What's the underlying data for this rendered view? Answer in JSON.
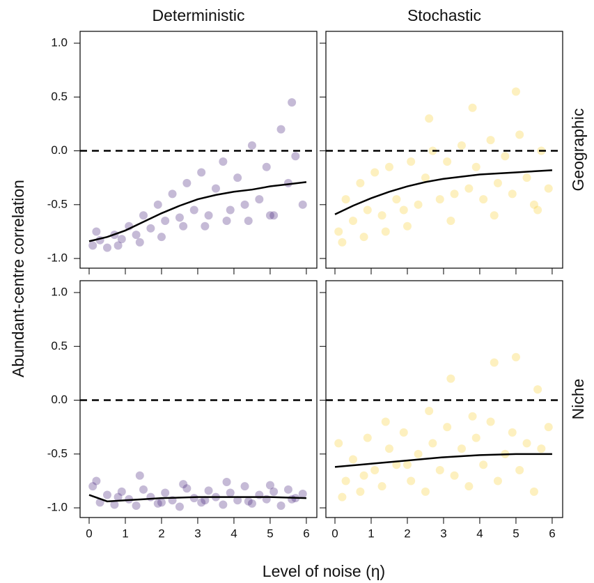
{
  "xlabel": "Level of noise (η)",
  "ylabel": "Abundant-centre correlation",
  "chart_data": [
    {
      "type": "scatter",
      "title": "Deterministic",
      "color": "#3f1a78",
      "xlim": [
        -0.25,
        6.29
      ],
      "ylim": [
        -1.09,
        1.11
      ],
      "xticks": [
        0,
        1,
        2,
        3,
        4,
        5,
        6
      ],
      "yticks": [
        {
          "value": -1,
          "label": "-1.0"
        },
        {
          "value": -0.5,
          "label": "-0.5"
        },
        {
          "value": 0,
          "label": "0.0"
        },
        {
          "value": 0.5,
          "label": "0.5"
        },
        {
          "value": 1,
          "label": "1.0"
        }
      ],
      "x_tick_labels": false,
      "y_tick_labels": true,
      "hline": 0,
      "x": [
        0.1,
        0.3,
        0.5,
        0.7,
        0.9,
        1.1,
        1.3,
        1.5,
        1.7,
        1.9,
        2.1,
        2.3,
        2.5,
        2.7,
        2.9,
        3.1,
        3.3,
        3.5,
        3.7,
        3.9,
        4.1,
        4.3,
        4.5,
        4.7,
        4.9,
        5.1,
        5.3,
        5.5,
        5.7,
        5.9,
        0.2,
        0.8,
        1.4,
        2.0,
        2.6,
        3.2,
        3.8,
        4.4,
        5.0,
        5.6
      ],
      "y": [
        -0.88,
        -0.83,
        -0.9,
        -0.78,
        -0.82,
        -0.7,
        -0.78,
        -0.6,
        -0.72,
        -0.5,
        -0.65,
        -0.4,
        -0.62,
        -0.3,
        -0.55,
        -0.2,
        -0.6,
        -0.35,
        -0.1,
        -0.55,
        -0.25,
        -0.5,
        0.05,
        -0.45,
        -0.15,
        -0.6,
        0.2,
        -0.3,
        -0.05,
        -0.5,
        -0.75,
        -0.88,
        -0.85,
        -0.8,
        -0.7,
        -0.7,
        -0.65,
        -0.65,
        -0.6,
        0.45
      ],
      "trend": {
        "x": [
          0,
          0.5,
          1,
          1.5,
          2,
          2.5,
          3,
          3.5,
          4,
          4.5,
          5,
          5.5,
          6
        ],
        "y": [
          -0.84,
          -0.8,
          -0.74,
          -0.66,
          -0.58,
          -0.51,
          -0.45,
          -0.41,
          -0.38,
          -0.36,
          -0.33,
          -0.31,
          -0.29
        ]
      }
    },
    {
      "type": "scatter",
      "title": "Stochastic",
      "row_label": "Geographic",
      "color": "#f8cd2b",
      "xlim": [
        -0.25,
        6.29
      ],
      "ylim": [
        -1.09,
        1.11
      ],
      "xticks": [
        0,
        1,
        2,
        3,
        4,
        5,
        6
      ],
      "yticks": [
        -1,
        -0.5,
        0,
        0.5,
        1
      ],
      "x_tick_labels": false,
      "y_tick_labels": false,
      "hline": 0,
      "x": [
        0.1,
        0.3,
        0.5,
        0.7,
        0.9,
        1.1,
        1.3,
        1.5,
        1.7,
        1.9,
        2.1,
        2.3,
        2.5,
        2.7,
        2.9,
        3.1,
        3.3,
        3.5,
        3.7,
        3.9,
        4.1,
        4.3,
        4.5,
        4.7,
        4.9,
        5.1,
        5.3,
        5.5,
        5.7,
        5.9,
        0.2,
        0.8,
        1.4,
        2.0,
        2.6,
        3.2,
        3.8,
        4.4,
        5.0,
        5.6
      ],
      "y": [
        -0.75,
        -0.45,
        -0.65,
        -0.3,
        -0.55,
        -0.2,
        -0.6,
        -0.15,
        -0.45,
        -0.55,
        -0.1,
        -0.5,
        -0.25,
        0,
        -0.45,
        -0.1,
        -0.4,
        0.05,
        -0.35,
        -0.15,
        -0.45,
        0.1,
        -0.3,
        -0.05,
        -0.4,
        0.15,
        -0.25,
        -0.5,
        0,
        -0.35,
        -0.85,
        -0.8,
        -0.75,
        -0.7,
        0.3,
        -0.65,
        0.4,
        -0.6,
        0.55,
        -0.55
      ],
      "trend": {
        "x": [
          0,
          0.5,
          1,
          1.5,
          2,
          2.5,
          3,
          3.5,
          4,
          4.5,
          5,
          5.5,
          6
        ],
        "y": [
          -0.59,
          -0.51,
          -0.44,
          -0.38,
          -0.33,
          -0.29,
          -0.26,
          -0.24,
          -0.22,
          -0.21,
          -0.2,
          -0.19,
          -0.18
        ]
      }
    },
    {
      "type": "scatter",
      "color": "#3f1a78",
      "xlim": [
        -0.25,
        6.29
      ],
      "ylim": [
        -1.09,
        1.11
      ],
      "xticks": [
        0,
        1,
        2,
        3,
        4,
        5,
        6
      ],
      "yticks": [
        {
          "value": -1,
          "label": "-1.0"
        },
        {
          "value": -0.5,
          "label": "-0.5"
        },
        {
          "value": 0,
          "label": "0.0"
        },
        {
          "value": 0.5,
          "label": "0.5"
        },
        {
          "value": 1,
          "label": "1.0"
        }
      ],
      "x_tick_labels": true,
      "y_tick_labels": true,
      "hline": 0,
      "x": [
        0.1,
        0.3,
        0.5,
        0.7,
        0.9,
        1.1,
        1.3,
        1.5,
        1.7,
        1.9,
        2.1,
        2.3,
        2.5,
        2.7,
        2.9,
        3.1,
        3.3,
        3.5,
        3.7,
        3.9,
        4.1,
        4.3,
        4.5,
        4.7,
        4.9,
        5.1,
        5.3,
        5.5,
        5.7,
        5.9,
        0.2,
        0.8,
        1.4,
        2.0,
        2.6,
        3.2,
        3.8,
        4.4,
        5.0,
        5.6
      ],
      "y": [
        -0.8,
        -0.95,
        -0.88,
        -0.97,
        -0.85,
        -0.92,
        -0.98,
        -0.83,
        -0.9,
        -0.96,
        -0.86,
        -0.93,
        -0.99,
        -0.82,
        -0.91,
        -0.95,
        -0.84,
        -0.9,
        -0.97,
        -0.86,
        -0.93,
        -0.8,
        -0.96,
        -0.88,
        -0.92,
        -0.85,
        -0.98,
        -0.83,
        -0.91,
        -0.87,
        -0.75,
        -0.9,
        -0.7,
        -0.95,
        -0.78,
        -0.93,
        -0.76,
        -0.94,
        -0.79,
        -0.92
      ],
      "trend": {
        "x": [
          0,
          0.5,
          1,
          1.5,
          2,
          3,
          4,
          5,
          6
        ],
        "y": [
          -0.88,
          -0.94,
          -0.93,
          -0.92,
          -0.91,
          -0.9,
          -0.9,
          -0.9,
          -0.91
        ]
      }
    },
    {
      "type": "scatter",
      "row_label": "Niche",
      "color": "#f8cd2b",
      "xlim": [
        -0.25,
        6.29
      ],
      "ylim": [
        -1.09,
        1.11
      ],
      "xticks": [
        0,
        1,
        2,
        3,
        4,
        5,
        6
      ],
      "yticks": [
        -1,
        -0.5,
        0,
        0.5,
        1
      ],
      "x_tick_labels": true,
      "y_tick_labels": false,
      "hline": 0,
      "x": [
        0.1,
        0.3,
        0.5,
        0.7,
        0.9,
        1.1,
        1.3,
        1.5,
        1.7,
        1.9,
        2.1,
        2.3,
        2.5,
        2.7,
        2.9,
        3.1,
        3.3,
        3.5,
        3.7,
        3.9,
        4.1,
        4.3,
        4.5,
        4.7,
        4.9,
        5.1,
        5.3,
        5.5,
        5.7,
        5.9,
        0.2,
        0.8,
        1.4,
        2.0,
        2.6,
        3.2,
        3.8,
        4.4,
        5.0,
        5.6
      ],
      "y": [
        -0.4,
        -0.75,
        -0.55,
        -0.85,
        -0.35,
        -0.65,
        -0.8,
        -0.45,
        -0.6,
        -0.3,
        -0.75,
        -0.5,
        -0.85,
        -0.4,
        -0.65,
        -0.25,
        -0.7,
        -0.45,
        -0.8,
        -0.35,
        -0.6,
        -0.2,
        -0.75,
        -0.5,
        -0.3,
        -0.65,
        -0.4,
        -0.85,
        -0.45,
        -0.25,
        -0.9,
        -0.7,
        -0.2,
        -0.6,
        -0.1,
        0.2,
        -0.15,
        0.35,
        0.4,
        0.1
      ],
      "trend": {
        "x": [
          0,
          1,
          2,
          3,
          4,
          5,
          6
        ],
        "y": [
          -0.62,
          -0.59,
          -0.56,
          -0.53,
          -0.51,
          -0.5,
          -0.5
        ]
      }
    }
  ]
}
